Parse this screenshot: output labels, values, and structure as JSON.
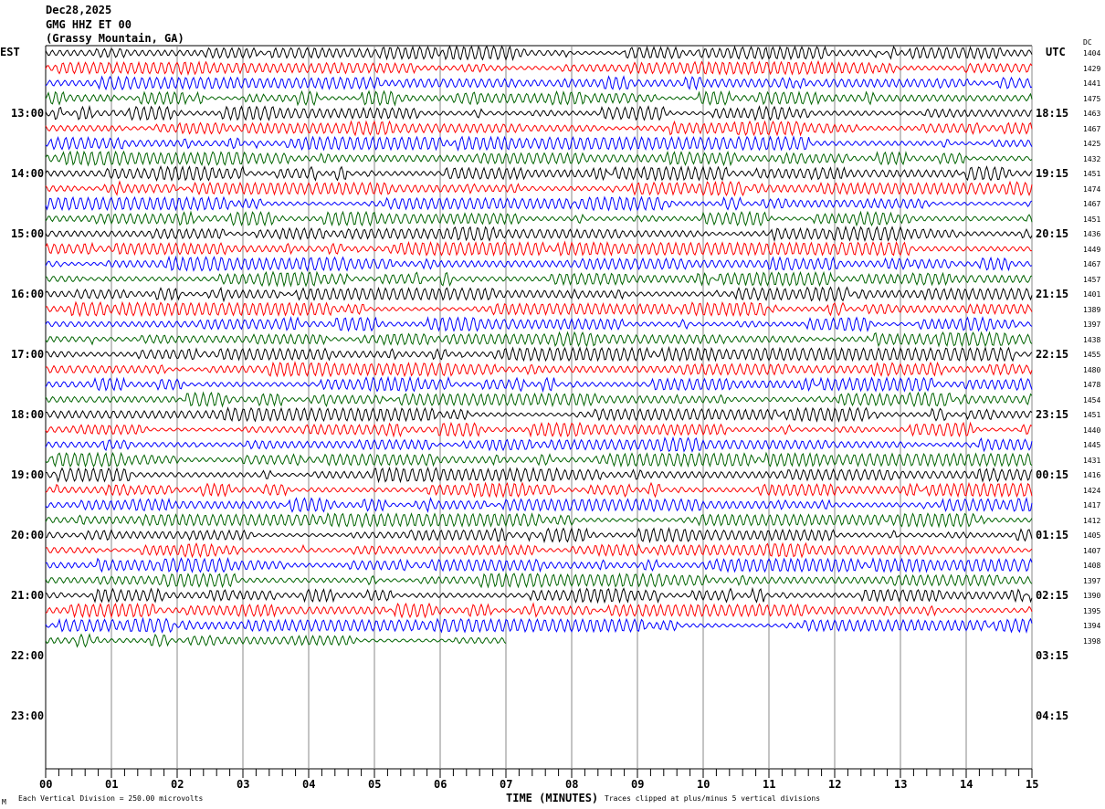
{
  "header": {
    "date": "Dec28,2025",
    "station": "GMG HHZ ET 00",
    "location": "(Grassy Mountain, GA)"
  },
  "left_tz": "EST",
  "right_tz": "UTC",
  "dc_label": "DC",
  "chart_data": {
    "type": "line",
    "title": "",
    "xlabel": "TIME (MINUTES)",
    "xlim": [
      0,
      15
    ],
    "x_ticks": [
      "00",
      "01",
      "02",
      "03",
      "04",
      "05",
      "06",
      "07",
      "08",
      "09",
      "10",
      "11",
      "12",
      "13",
      "14",
      "15"
    ],
    "left_hour_labels": [
      "13:00",
      "14:00",
      "15:00",
      "16:00",
      "17:00",
      "18:00",
      "19:00",
      "20:00",
      "21:00",
      "22:00",
      "23:00"
    ],
    "right_hour_labels": [
      "18:15",
      "19:15",
      "20:15",
      "21:15",
      "22:15",
      "23:15",
      "00:15",
      "01:15",
      "02:15",
      "03:15",
      "04:15"
    ],
    "rows_per_hour": 4,
    "trace_colors": [
      "#000000",
      "#ff0000",
      "#0000ff",
      "#006400"
    ],
    "rows_with_data": 40,
    "last_row_end_minute": 7,
    "dc_offsets": [
      1404,
      1429,
      1441,
      1475,
      1463,
      1467,
      1425,
      1432,
      1451,
      1474,
      1467,
      1451,
      1436,
      1449,
      1467,
      1457,
      1401,
      1389,
      1397,
      1438,
      1455,
      1480,
      1478,
      1454,
      1451,
      1440,
      1445,
      1431,
      1416,
      1424,
      1417,
      1412,
      1405,
      1407,
      1408,
      1397,
      1390,
      1395,
      1394,
      1398
    ]
  },
  "footer": {
    "scale": "Each Vertical Division =  250.00 microvolts",
    "clip_note": "Traces clipped at plus/minus 5 vertical divisions",
    "corner_mark": "M"
  }
}
